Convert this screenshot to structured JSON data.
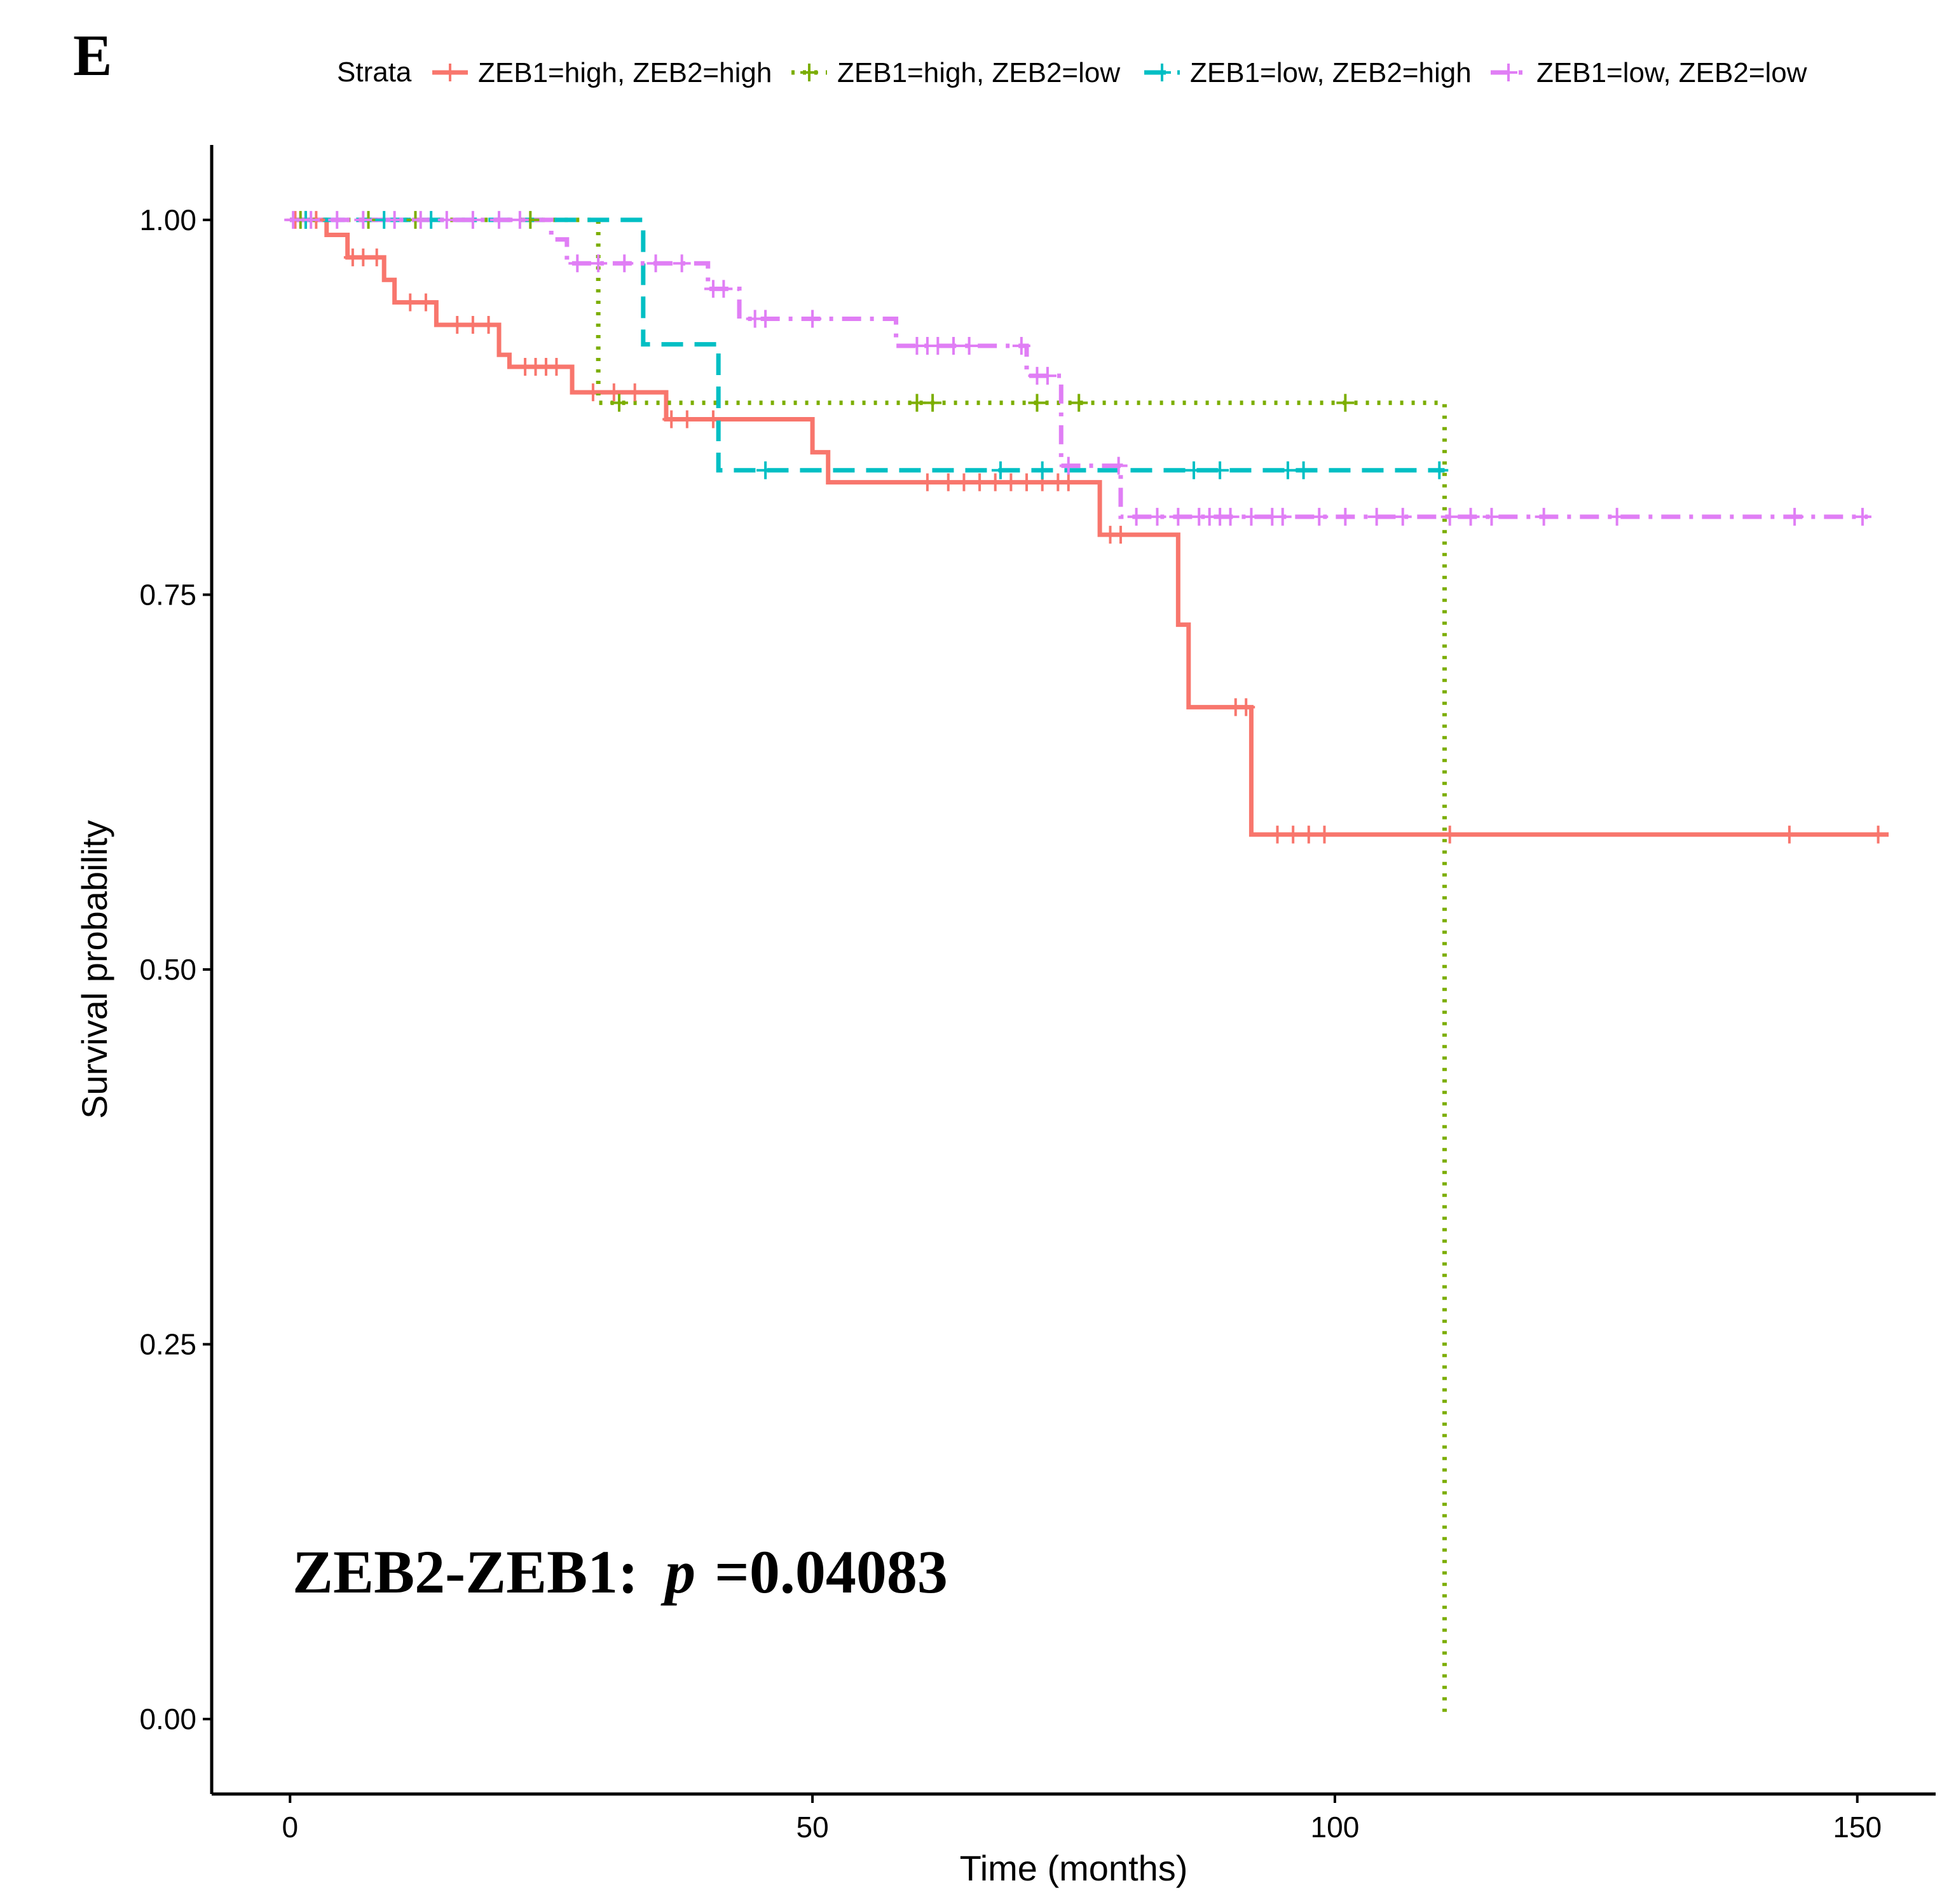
{
  "panel_label": "E",
  "chart_data": {
    "type": "line",
    "subtype": "kaplan-meier",
    "xlabel": "Time (months)",
    "ylabel": "Survival probability",
    "xlim": [
      -7.5,
      157.5
    ],
    "ylim": [
      -0.05,
      1.05
    ],
    "xticks": [
      0,
      50,
      100,
      150
    ],
    "xtick_labels": [
      "0",
      "50",
      "100",
      "150"
    ],
    "yticks": [
      0,
      0.25,
      0.5,
      0.75,
      1
    ],
    "ytick_labels": [
      "0.00",
      "0.25",
      "0.50",
      "0.75",
      "1.00"
    ],
    "grid": false,
    "legend_title": "Strata",
    "legend_position": "top",
    "annotation": {
      "label": "ZEB2-ZEB1:",
      "p_symbol": "p",
      "p_value": "=0.04083",
      "position": "bottom-left"
    },
    "series": [
      {
        "name": "ZEB1=high, ZEB2=high",
        "color": "#F8766D",
        "dash": "solid",
        "steps": [
          [
            0,
            1.0
          ],
          [
            3.5,
            0.99
          ],
          [
            5.5,
            0.975
          ],
          [
            9,
            0.96
          ],
          [
            10,
            0.945
          ],
          [
            14,
            0.93
          ],
          [
            20,
            0.91
          ],
          [
            21,
            0.902
          ],
          [
            27,
            0.885
          ],
          [
            36,
            0.867
          ],
          [
            50,
            0.845
          ],
          [
            51.5,
            0.825
          ],
          [
            77.5,
            0.79
          ],
          [
            85,
            0.73
          ],
          [
            86,
            0.675
          ],
          [
            92,
            0.59
          ],
          [
            153,
            0.59
          ]
        ],
        "censors": [
          [
            0.5,
            1.0
          ],
          [
            1.5,
            1.0
          ],
          [
            2.5,
            1.0
          ],
          [
            6,
            0.975
          ],
          [
            7,
            0.975
          ],
          [
            8.3,
            0.975
          ],
          [
            11.5,
            0.945
          ],
          [
            13,
            0.945
          ],
          [
            16,
            0.93
          ],
          [
            17.5,
            0.93
          ],
          [
            19,
            0.93
          ],
          [
            22.5,
            0.902
          ],
          [
            23.5,
            0.902
          ],
          [
            24.5,
            0.902
          ],
          [
            25.5,
            0.902
          ],
          [
            29,
            0.885
          ],
          [
            31,
            0.885
          ],
          [
            33,
            0.885
          ],
          [
            36.5,
            0.867
          ],
          [
            38,
            0.867
          ],
          [
            40.5,
            0.867
          ],
          [
            61,
            0.825
          ],
          [
            63,
            0.825
          ],
          [
            64.5,
            0.825
          ],
          [
            66,
            0.825
          ],
          [
            67.5,
            0.825
          ],
          [
            69,
            0.825
          ],
          [
            70.5,
            0.825
          ],
          [
            72,
            0.825
          ],
          [
            73.5,
            0.825
          ],
          [
            74.5,
            0.825
          ],
          [
            78.5,
            0.79
          ],
          [
            79.5,
            0.79
          ],
          [
            90.5,
            0.675
          ],
          [
            91.5,
            0.675
          ],
          [
            94.5,
            0.59
          ],
          [
            96,
            0.59
          ],
          [
            97.5,
            0.59
          ],
          [
            99,
            0.59
          ],
          [
            111,
            0.59
          ],
          [
            143.5,
            0.59
          ],
          [
            152,
            0.59
          ]
        ]
      },
      {
        "name": "ZEB1=high, ZEB2=low",
        "color": "#7CAE00",
        "dash": "dotted",
        "steps": [
          [
            0,
            1.0
          ],
          [
            29.5,
            0.878
          ],
          [
            110.5,
            0.0
          ]
        ],
        "censors": [
          [
            1,
            1.0
          ],
          [
            7.5,
            1.0
          ],
          [
            12,
            1.0
          ],
          [
            23,
            1.0
          ],
          [
            31.5,
            0.878
          ],
          [
            60,
            0.878
          ],
          [
            61.5,
            0.878
          ],
          [
            71.5,
            0.878
          ],
          [
            75.5,
            0.878
          ],
          [
            101,
            0.878
          ]
        ]
      },
      {
        "name": "ZEB1=low, ZEB2=high",
        "color": "#00BFC4",
        "dash": "dashed",
        "steps": [
          [
            0,
            1.0
          ],
          [
            33.8,
            0.917
          ],
          [
            41,
            0.833
          ],
          [
            110.5,
            0.833
          ]
        ],
        "censors": [
          [
            1.5,
            1.0
          ],
          [
            9,
            1.0
          ],
          [
            13.5,
            1.0
          ],
          [
            45.5,
            0.833
          ],
          [
            68,
            0.833
          ],
          [
            72,
            0.833
          ],
          [
            86.5,
            0.833
          ],
          [
            89,
            0.833
          ],
          [
            95.5,
            0.833
          ],
          [
            97,
            0.833
          ],
          [
            110,
            0.833
          ]
        ]
      },
      {
        "name": "ZEB1=low, ZEB2=low",
        "color": "#E07EF5",
        "dash": "dotdash",
        "steps": [
          [
            0,
            1.0
          ],
          [
            25,
            0.987
          ],
          [
            26.5,
            0.971
          ],
          [
            40,
            0.954
          ],
          [
            43,
            0.934
          ],
          [
            58,
            0.916
          ],
          [
            70.5,
            0.896
          ],
          [
            73.8,
            0.836
          ],
          [
            79.5,
            0.802
          ],
          [
            151,
            0.802
          ]
        ],
        "censors": [
          [
            0.3,
            1.0
          ],
          [
            2,
            1.0
          ],
          [
            4.5,
            1.0
          ],
          [
            7,
            1.0
          ],
          [
            10,
            1.0
          ],
          [
            12.5,
            1.0
          ],
          [
            15,
            1.0
          ],
          [
            17.5,
            1.0
          ],
          [
            20,
            1.0
          ],
          [
            22,
            1.0
          ],
          [
            27.5,
            0.971
          ],
          [
            29.5,
            0.971
          ],
          [
            32,
            0.971
          ],
          [
            35,
            0.971
          ],
          [
            37.5,
            0.971
          ],
          [
            40.5,
            0.954
          ],
          [
            41.5,
            0.954
          ],
          [
            44.5,
            0.934
          ],
          [
            45.5,
            0.934
          ],
          [
            50,
            0.934
          ],
          [
            60,
            0.916
          ],
          [
            61,
            0.916
          ],
          [
            62,
            0.916
          ],
          [
            63.5,
            0.916
          ],
          [
            65,
            0.916
          ],
          [
            70,
            0.916
          ],
          [
            71.5,
            0.896
          ],
          [
            72.5,
            0.896
          ],
          [
            74.5,
            0.836
          ],
          [
            79.3,
            0.836
          ],
          [
            81,
            0.802
          ],
          [
            83,
            0.802
          ],
          [
            85,
            0.802
          ],
          [
            87,
            0.802
          ],
          [
            88,
            0.802
          ],
          [
            89,
            0.802
          ],
          [
            90,
            0.802
          ],
          [
            92,
            0.802
          ],
          [
            94,
            0.802
          ],
          [
            95,
            0.802
          ],
          [
            98.5,
            0.802
          ],
          [
            101,
            0.802
          ],
          [
            104,
            0.802
          ],
          [
            106.5,
            0.802
          ],
          [
            111,
            0.802
          ],
          [
            113,
            0.802
          ],
          [
            115,
            0.802
          ],
          [
            120,
            0.802
          ],
          [
            127,
            0.802
          ],
          [
            144,
            0.802
          ],
          [
            150.5,
            0.802
          ]
        ]
      }
    ]
  }
}
